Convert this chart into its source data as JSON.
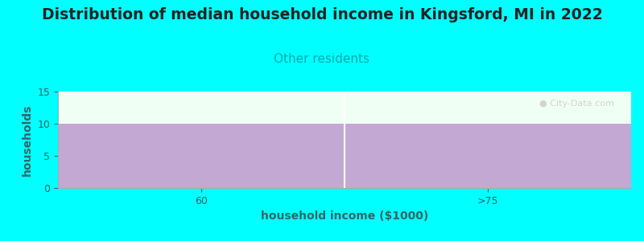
{
  "title": "Distribution of median household income in Kingsford, MI in 2022",
  "subtitle": "Other residents",
  "xlabel": "household income ($1000)",
  "ylabel": "households",
  "categories": [
    "60",
    ">75"
  ],
  "values": [
    10,
    10
  ],
  "bar_color": "#c4a8d4",
  "ylim": [
    0,
    15
  ],
  "yticks": [
    0,
    5,
    10,
    15
  ],
  "background_color": "#00ffff",
  "plot_bg_color": "#f0fff4",
  "title_fontsize": 13.5,
  "subtitle_fontsize": 11,
  "subtitle_color": "#00aaaa",
  "axis_label_fontsize": 10,
  "tick_fontsize": 9,
  "label_color": "#336666",
  "tick_color": "#336666",
  "watermark": "City-Data.com"
}
